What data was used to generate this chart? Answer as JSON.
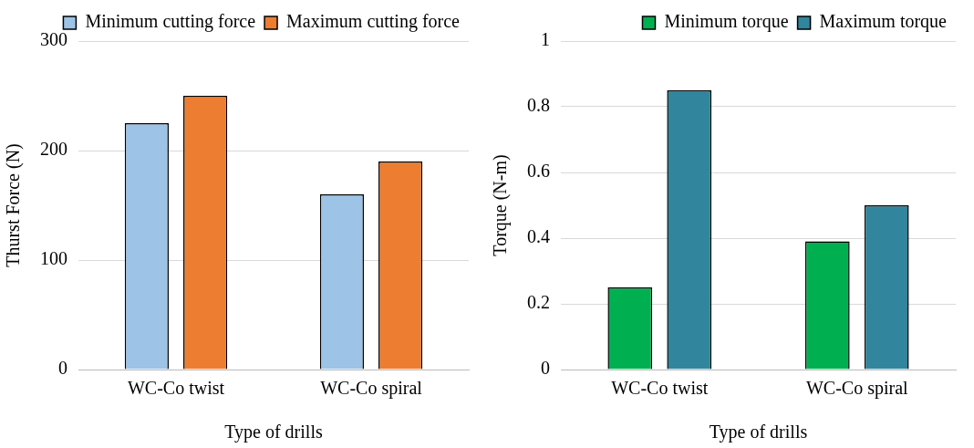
{
  "chart_data": [
    {
      "type": "bar",
      "categories": [
        "WC-Co twist",
        "WC-Co spiral"
      ],
      "xlabel": "Type of drills",
      "ylabel": "Thurst Force (N)",
      "ylim": [
        0,
        300
      ],
      "yticks": [
        0,
        100,
        200,
        300
      ],
      "grid": "y",
      "legend": "top right",
      "series": [
        {
          "name": "Minimum cutting force",
          "color": "#9dc3e6",
          "values": [
            225,
            160
          ]
        },
        {
          "name": "Maximum cutting force",
          "color": "#ed7d31",
          "values": [
            250,
            190
          ]
        }
      ]
    },
    {
      "type": "bar",
      "categories": [
        "WC-Co twist",
        "WC-Co spiral"
      ],
      "xlabel": "Type of drills",
      "ylabel": "Torque (N-m)",
      "ylim": [
        0,
        1
      ],
      "yticks": [
        0,
        0.2,
        0.4,
        0.6,
        0.8,
        1
      ],
      "grid": "y",
      "legend": "top right",
      "series": [
        {
          "name": "Minimum torque",
          "color": "#00b050",
          "values": [
            0.25,
            0.39
          ]
        },
        {
          "name": "Maximum torque",
          "color": "#31859c",
          "values": [
            0.85,
            0.5
          ]
        }
      ]
    }
  ]
}
